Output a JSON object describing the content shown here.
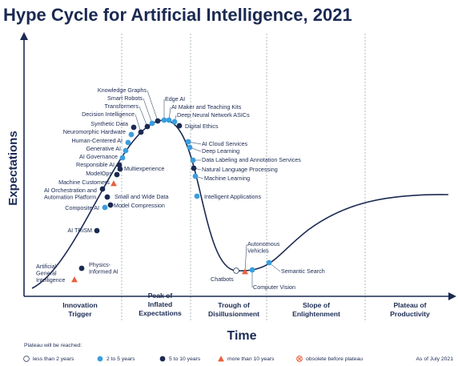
{
  "title": "Hype Cycle for Artificial Intelligence, 2021",
  "y_axis_label": "Expectations",
  "x_axis_label": "Time",
  "phases": [
    [
      "Innovation",
      "Trigger"
    ],
    [
      "Peak of",
      "Inflated",
      "Expectations"
    ],
    [
      "Trough of",
      "Disillusionment"
    ],
    [
      "Slope of",
      "Enlightenment"
    ],
    [
      "Plateau of",
      "Productivity"
    ]
  ],
  "technologies": [
    {
      "label": [
        "Artificial",
        "General",
        "Intelligence"
      ],
      "symbol": "triangle"
    },
    {
      "label": [
        "Physics-",
        "Informed AI"
      ],
      "symbol": "dark-circle"
    },
    {
      "label": [
        "AI TRiSM"
      ],
      "symbol": "dark-circle"
    },
    {
      "label": [
        "Composite AI"
      ],
      "symbol": "light-circle"
    },
    {
      "label": [
        "Model Compression"
      ],
      "symbol": "dark-circle"
    },
    {
      "label": [
        "Small and Wide Data"
      ],
      "symbol": "dark-circle"
    },
    {
      "label": [
        "AI Orchestration and",
        "Automation Platform"
      ],
      "symbol": "dark-circle"
    },
    {
      "label": [
        "Machine Customers"
      ],
      "symbol": "triangle"
    },
    {
      "label": [
        "ModelOps"
      ],
      "symbol": "dark-circle"
    },
    {
      "label": [
        "Multiexperience"
      ],
      "symbol": "dark-circle"
    },
    {
      "label": [
        "Responsible AI"
      ],
      "symbol": "dark-circle"
    },
    {
      "label": [
        "AI Governance"
      ],
      "symbol": "light-circle"
    },
    {
      "label": [
        "Generative AI"
      ],
      "symbol": "light-circle"
    },
    {
      "label": [
        "Human-Centered AI"
      ],
      "symbol": "light-circle"
    },
    {
      "label": [
        "Neuromorphic Hardware"
      ],
      "symbol": "light-circle"
    },
    {
      "label": [
        "Synthetic Data"
      ],
      "symbol": "dark-circle"
    },
    {
      "label": [
        "Decision Intelligence"
      ],
      "symbol": "dark-circle"
    },
    {
      "label": [
        "Transformers"
      ],
      "symbol": "dark-circle"
    },
    {
      "label": [
        "Smart Robots"
      ],
      "symbol": "light-circle"
    },
    {
      "label": [
        "Knowledge Graphs"
      ],
      "symbol": "dark-circle"
    },
    {
      "label": [
        "Edge AI"
      ],
      "symbol": "light-circle"
    },
    {
      "label": [
        "AI Maker and Teaching Kits"
      ],
      "symbol": "light-circle"
    },
    {
      "label": [
        "Deep Neural Network ASICs"
      ],
      "symbol": "light-circle"
    },
    {
      "label": [
        "Digital Ethics"
      ],
      "symbol": "dark-circle"
    },
    {
      "label": [
        "AI Cloud Services"
      ],
      "symbol": "light-circle"
    },
    {
      "label": [
        "Deep Learning"
      ],
      "symbol": "light-circle"
    },
    {
      "label": [
        "Data Labeling and Annotation Services"
      ],
      "symbol": "light-circle"
    },
    {
      "label": [
        "Natural Language Processing"
      ],
      "symbol": "dark-circle"
    },
    {
      "label": [
        "Machine Learning"
      ],
      "symbol": "light-circle"
    },
    {
      "label": [
        "Intelligent Applications"
      ],
      "symbol": "light-circle"
    },
    {
      "label": [
        "Chatbots"
      ],
      "symbol": "open-circle"
    },
    {
      "label": [
        "Autonomous",
        "Vehicles"
      ],
      "symbol": "triangle"
    },
    {
      "label": [
        "Computer Vision"
      ],
      "symbol": "light-circle"
    },
    {
      "label": [
        "Semantic Search"
      ],
      "symbol": "light-circle"
    }
  ],
  "legend": {
    "title": "Plateau will be reached:",
    "items": [
      {
        "label": "less than 2 years",
        "symbol": "open-circle"
      },
      {
        "label": "2 to 5 years",
        "symbol": "light-circle"
      },
      {
        "label": "5 to 10 years",
        "symbol": "dark-circle"
      },
      {
        "label": "more than 10 years",
        "symbol": "triangle"
      },
      {
        "label": "obsolete before plateau",
        "symbol": "obsolete"
      }
    ]
  },
  "as_of": "As of July 2021"
}
